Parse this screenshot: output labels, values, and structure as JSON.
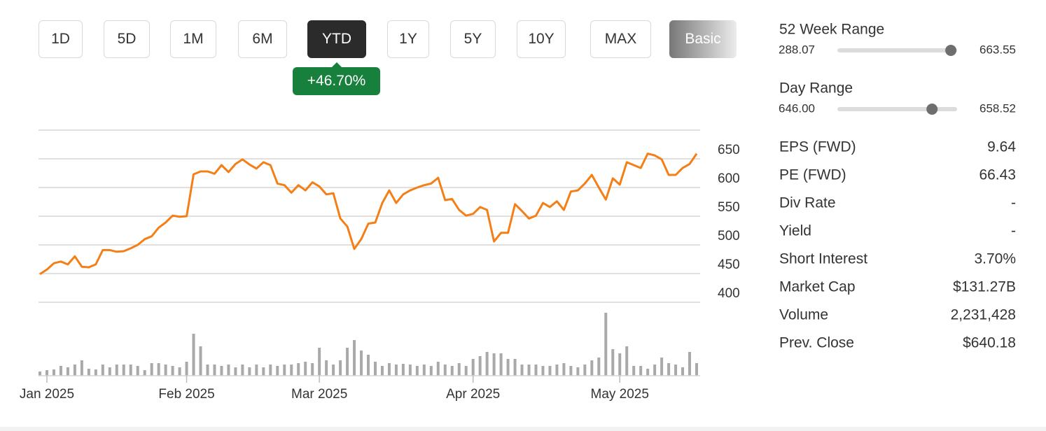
{
  "buttons": [
    "1D",
    "5D",
    "1M",
    "6M",
    "YTD",
    "1Y",
    "5Y",
    "10Y",
    "MAX",
    "Basic"
  ],
  "active_button": 4,
  "change_badge": "+46.70%",
  "ranges": [
    {
      "label": "52 Week Range",
      "low": 288.07,
      "high": 663.55,
      "marker": 644
    },
    {
      "label": "Day Range",
      "low": {
        "value": 646,
        "label": "646.00"
      },
      "high": 658.52,
      "marker": 655.9
    }
  ],
  "stats": [
    {
      "label": "EPS (FWD)",
      "value": "9.64"
    },
    {
      "label": "PE (FWD)",
      "value": "66.43"
    },
    {
      "label": "Div Rate",
      "value": "-"
    },
    {
      "label": "Yield",
      "value": "-"
    },
    {
      "label": "Short Interest",
      "value": "3.70%"
    },
    {
      "label": "Market Cap",
      "value": "$131.27B"
    },
    {
      "label": "Volume",
      "value": "2,231,428"
    },
    {
      "label": "Prev. Close",
      "value": "$640.18"
    }
  ],
  "chart_data": {
    "type": "line",
    "color": "#f57f17",
    "ylim": [
      400,
      700
    ],
    "yticks": [
      400,
      450,
      500,
      550,
      600,
      650
    ],
    "grid": true,
    "categories": [
      null,
      "Jan 2025",
      null,
      null,
      null,
      null,
      null,
      null,
      null,
      null,
      null,
      null,
      null,
      null,
      null,
      null,
      null,
      null,
      null,
      null,
      null,
      "Feb 2025",
      null,
      null,
      null,
      null,
      null,
      null,
      null,
      null,
      null,
      null,
      null,
      null,
      null,
      null,
      null,
      null,
      null,
      null,
      "Mar 2025",
      null,
      null,
      null,
      null,
      null,
      null,
      null,
      null,
      null,
      null,
      null,
      null,
      null,
      null,
      null,
      null,
      null,
      null,
      null,
      null,
      null,
      "Apr 2025",
      null,
      null,
      null,
      null,
      null,
      null,
      null,
      null,
      null,
      null,
      null,
      null,
      null,
      null,
      null,
      null,
      null,
      null,
      null,
      null,
      "May 2025",
      null,
      null,
      null,
      null,
      null,
      null,
      null,
      null,
      null,
      null,
      null
    ],
    "values": [
      449,
      457,
      468,
      471,
      466,
      480,
      462,
      461,
      466,
      491,
      491,
      488,
      489,
      494,
      500,
      510,
      515,
      530,
      539,
      551,
      549,
      550,
      623,
      628,
      628,
      624,
      639,
      627,
      641,
      649,
      640,
      633,
      644,
      639,
      607,
      604,
      591,
      604,
      595,
      609,
      602,
      588,
      590,
      546,
      532,
      493,
      510,
      537,
      539,
      573,
      595,
      573,
      588,
      595,
      600,
      604,
      607,
      617,
      578,
      580,
      561,
      551,
      554,
      566,
      561,
      506,
      521,
      521,
      571,
      559,
      546,
      551,
      573,
      566,
      576,
      561,
      593,
      595,
      607,
      622,
      600,
      579,
      616,
      605,
      644,
      639,
      634,
      659,
      656,
      649,
      622,
      622,
      634,
      641,
      659
    ],
    "volume": {
      "color": "#a9a9a9",
      "values": [
        6,
        8,
        9,
        14,
        12,
        16,
        22,
        10,
        9,
        16,
        12,
        16,
        16,
        16,
        14,
        8,
        18,
        18,
        16,
        14,
        12,
        20,
        60,
        42,
        16,
        16,
        14,
        16,
        12,
        16,
        12,
        16,
        12,
        16,
        14,
        16,
        16,
        18,
        20,
        18,
        40,
        22,
        16,
        22,
        40,
        51,
        36,
        30,
        20,
        14,
        18,
        16,
        17,
        16,
        14,
        16,
        14,
        20,
        16,
        14,
        18,
        14,
        24,
        28,
        34,
        32,
        32,
        24,
        24,
        16,
        16,
        16,
        14,
        14,
        16,
        18,
        14,
        12,
        16,
        22,
        26,
        90,
        38,
        32,
        42,
        14,
        14,
        10,
        16,
        26,
        18,
        16,
        12,
        34,
        18
      ]
    }
  }
}
